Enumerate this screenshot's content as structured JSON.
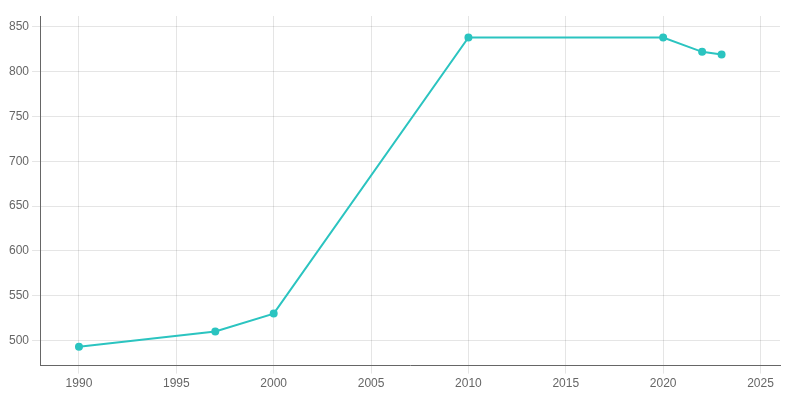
{
  "chart_data": {
    "type": "line",
    "x": [
      1990,
      1997,
      2000,
      2010,
      2020,
      2022,
      2023
    ],
    "values": [
      493,
      510,
      530,
      838,
      838,
      822,
      819
    ],
    "color": "#2BC4C0",
    "marker": "circle",
    "xlim": [
      1988,
      2026
    ],
    "ylim": [
      472,
      862
    ],
    "xticks": [
      1990,
      1995,
      2000,
      2005,
      2010,
      2015,
      2020,
      2025
    ],
    "yticks": [
      500,
      550,
      600,
      650,
      700,
      750,
      800,
      850
    ],
    "grid": true
  }
}
